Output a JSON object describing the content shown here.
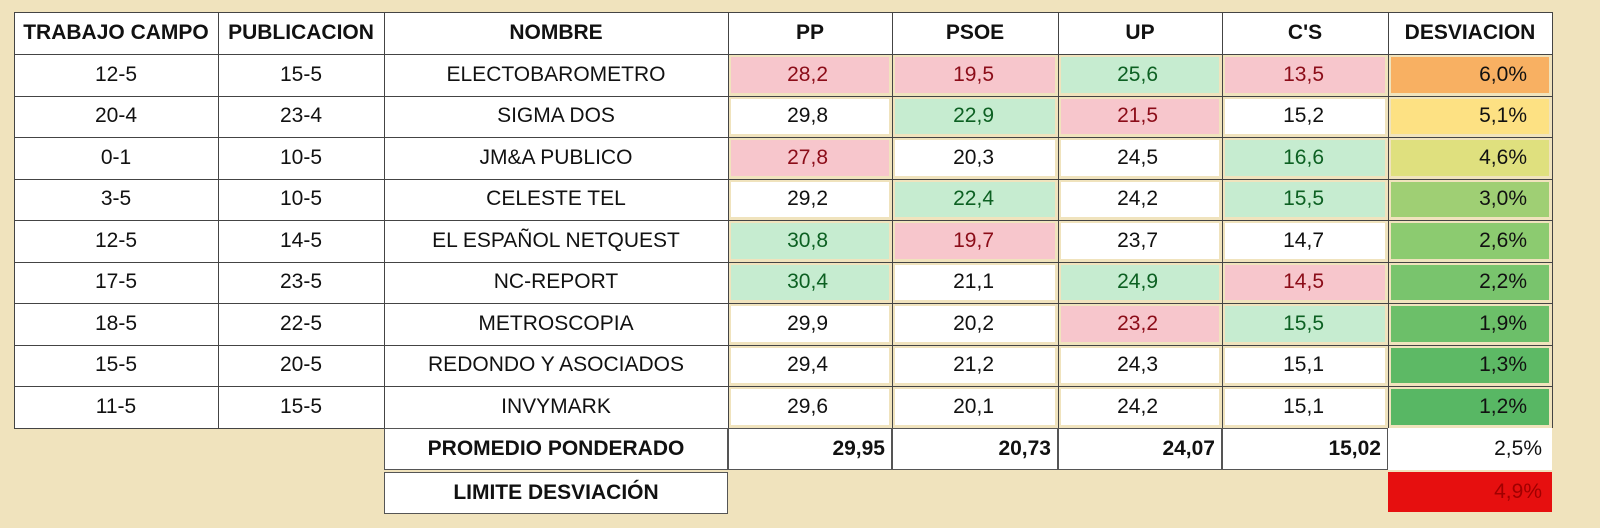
{
  "headers": [
    "TRABAJO CAMPO",
    "PUBLICACION",
    "NOMBRE",
    "PP",
    "PSOE",
    "UP",
    "C'S",
    "DESVIACION"
  ],
  "rows": [
    {
      "campo": "12-5",
      "pub": "15-5",
      "nombre": "ELECTOBAROMETRO",
      "pp": "28,2",
      "psoe": "19,5",
      "up": "25,6",
      "cs": "13,5",
      "dev": "6,0%",
      "pp_c": "pink",
      "psoe_c": "pink",
      "up_c": "green",
      "cs_c": "pink",
      "dev_color": "#f8b062"
    },
    {
      "campo": "20-4",
      "pub": "23-4",
      "nombre": "SIGMA DOS",
      "pp": "29,8",
      "psoe": "22,9",
      "up": "21,5",
      "cs": "15,2",
      "dev": "5,1%",
      "pp_c": "",
      "psoe_c": "green",
      "up_c": "pink",
      "cs_c": "",
      "dev_color": "#fde183"
    },
    {
      "campo": "0-1",
      "pub": "10-5",
      "nombre": "JM&A PUBLICO",
      "pp": "27,8",
      "psoe": "20,3",
      "up": "24,5",
      "cs": "16,6",
      "dev": "4,6%",
      "pp_c": "pink",
      "psoe_c": "",
      "up_c": "",
      "cs_c": "green",
      "dev_color": "#dfe07e"
    },
    {
      "campo": "3-5",
      "pub": "10-5",
      "nombre": "CELESTE TEL",
      "pp": "29,2",
      "psoe": "22,4",
      "up": "24,2",
      "cs": "15,5",
      "dev": "3,0%",
      "pp_c": "",
      "psoe_c": "green",
      "up_c": "",
      "cs_c": "green",
      "dev_color": "#9fcf74"
    },
    {
      "campo": "12-5",
      "pub": "14-5",
      "nombre": "EL ESPAÑOL NETQUEST",
      "pp": "30,8",
      "psoe": "19,7",
      "up": "23,7",
      "cs": "14,7",
      "dev": "2,6%",
      "pp_c": "green",
      "psoe_c": "pink",
      "up_c": "",
      "cs_c": "",
      "dev_color": "#8ccb70"
    },
    {
      "campo": "17-5",
      "pub": "23-5",
      "nombre": "NC-REPORT",
      "pp": "30,4",
      "psoe": "21,1",
      "up": "24,9",
      "cs": "14,5",
      "dev": "2,2%",
      "pp_c": "green",
      "psoe_c": "",
      "up_c": "green",
      "cs_c": "pink",
      "dev_color": "#79c46d"
    },
    {
      "campo": "18-5",
      "pub": "22-5",
      "nombre": "METROSCOPIA",
      "pp": "29,9",
      "psoe": "20,2",
      "up": "23,2",
      "cs": "15,5",
      "dev": "1,9%",
      "pp_c": "",
      "psoe_c": "",
      "up_c": "pink",
      "cs_c": "green",
      "dev_color": "#6cbf69"
    },
    {
      "campo": "15-5",
      "pub": "20-5",
      "nombre": "REDONDO Y ASOCIADOS",
      "pp": "29,4",
      "psoe": "21,2",
      "up": "24,3",
      "cs": "15,1",
      "dev": "1,3%",
      "pp_c": "",
      "psoe_c": "",
      "up_c": "",
      "cs_c": "",
      "dev_color": "#5db965"
    },
    {
      "campo": "11-5",
      "pub": "15-5",
      "nombre": "INVYMARK",
      "pp": "29,6",
      "psoe": "20,1",
      "up": "24,2",
      "cs": "15,1",
      "dev": "1,2%",
      "pp_c": "",
      "psoe_c": "",
      "up_c": "",
      "cs_c": "",
      "dev_color": "#58b764"
    }
  ],
  "promedio": {
    "label": "PROMEDIO PONDERADO",
    "pp": "29,95",
    "psoe": "20,73",
    "up": "24,07",
    "cs": "15,02",
    "dev": "2,5%"
  },
  "limite": {
    "label": "LIMITE DESVIACIÓN",
    "dev": "4,9%",
    "dev_color": "#e60f0f"
  }
}
